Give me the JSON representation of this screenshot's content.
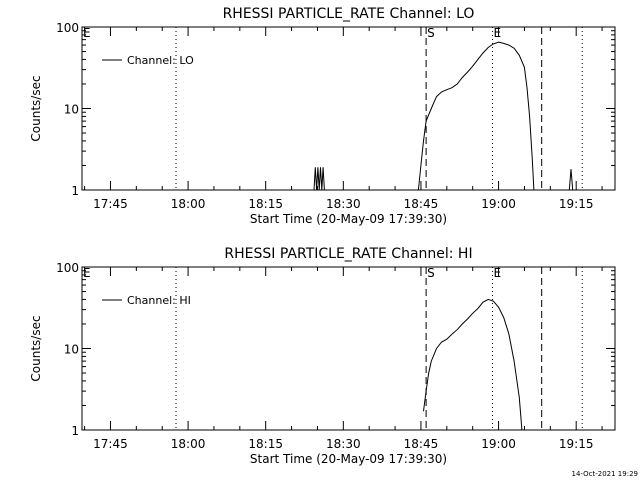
{
  "footer": {
    "timestamp": "14-Oct-2021 19:29"
  },
  "chart_data": [
    {
      "type": "line",
      "title": "RHESSI PARTICLE_RATE Channel: LO",
      "xlabel": "Start Time (20-May-09 17:39:30)",
      "ylabel": "Counts/sec",
      "yscale": "log",
      "ylim": [
        1,
        100
      ],
      "xlim_minutes_after_17_39_30": [
        0,
        103
      ],
      "y_ticks": [
        "1",
        "10",
        "100"
      ],
      "x_ticks": [
        "17:45",
        "18:00",
        "18:15",
        "18:30",
        "18:45",
        "19:00",
        "19:15"
      ],
      "legend": {
        "label": "Channel: LO",
        "position": "top-left"
      },
      "markers": [
        {
          "label": "E",
          "time": "17:39:30",
          "style": "none"
        },
        {
          "label": "",
          "time": "17:57:40",
          "style": "dotted"
        },
        {
          "label": "S",
          "time": "18:46:00",
          "style": "dashed"
        },
        {
          "label": "E",
          "time": "18:58:50",
          "style": "dotted"
        },
        {
          "label": "",
          "time": "19:08:20",
          "style": "dashed"
        },
        {
          "label": "",
          "time": "19:16:10",
          "style": "dotted"
        }
      ],
      "series": [
        {
          "name": "Channel: LO",
          "segments": [
            [
              [
                "18:24:20",
                1
              ],
              [
                "18:24:35",
                1.9
              ],
              [
                "18:24:50",
                1
              ],
              [
                "18:25:05",
                1.9
              ],
              [
                "18:25:20",
                1
              ],
              [
                "18:25:35",
                1.9
              ],
              [
                "18:25:50",
                1
              ],
              [
                "18:26:05",
                1.9
              ],
              [
                "18:26:20",
                1
              ]
            ],
            [
              [
                "18:44:30",
                1
              ],
              [
                "18:45:00",
                2
              ],
              [
                "18:45:30",
                4
              ],
              [
                "18:46:00",
                7
              ],
              [
                "18:47:00",
                10
              ],
              [
                "18:48:00",
                14
              ],
              [
                "18:49:00",
                16
              ],
              [
                "18:50:00",
                17
              ],
              [
                "18:51:00",
                18
              ],
              [
                "18:52:00",
                20
              ],
              [
                "18:53:00",
                24
              ],
              [
                "18:54:00",
                28
              ],
              [
                "18:55:00",
                33
              ],
              [
                "18:56:00",
                40
              ],
              [
                "18:57:00",
                48
              ],
              [
                "18:58:00",
                56
              ],
              [
                "18:59:00",
                62
              ],
              [
                "19:00:00",
                65
              ],
              [
                "19:01:00",
                63
              ],
              [
                "19:02:00",
                60
              ],
              [
                "19:03:00",
                55
              ],
              [
                "19:04:00",
                45
              ],
              [
                "19:05:00",
                32
              ],
              [
                "19:05:30",
                18
              ],
              [
                "19:06:00",
                8
              ],
              [
                "19:06:30",
                2.5
              ],
              [
                "19:06:50",
                1
              ]
            ],
            [
              [
                "19:13:40",
                1
              ],
              [
                "19:14:00",
                1.8
              ],
              [
                "19:14:20",
                1
              ]
            ]
          ]
        }
      ]
    },
    {
      "type": "line",
      "title": "RHESSI PARTICLE_RATE Channel: HI",
      "xlabel": "Start Time (20-May-09 17:39:30)",
      "ylabel": "Counts/sec",
      "yscale": "log",
      "ylim": [
        1,
        100
      ],
      "xlim_minutes_after_17_39_30": [
        0,
        103
      ],
      "y_ticks": [
        "1",
        "10",
        "100"
      ],
      "x_ticks": [
        "17:45",
        "18:00",
        "18:15",
        "18:30",
        "18:45",
        "19:00",
        "19:15"
      ],
      "legend": {
        "label": "Channel: HI",
        "position": "top-left"
      },
      "markers": [
        {
          "label": "E",
          "time": "17:39:30",
          "style": "none"
        },
        {
          "label": "",
          "time": "17:57:40",
          "style": "dotted"
        },
        {
          "label": "S",
          "time": "18:46:00",
          "style": "dashed"
        },
        {
          "label": "E",
          "time": "18:58:50",
          "style": "dotted"
        },
        {
          "label": "",
          "time": "19:08:20",
          "style": "dashed"
        },
        {
          "label": "",
          "time": "19:16:10",
          "style": "dotted"
        }
      ],
      "series": [
        {
          "name": "Channel: HI",
          "segments": [
            [
              [
                "18:45:30",
                1.7
              ],
              [
                "18:46:00",
                3
              ],
              [
                "18:46:30",
                5
              ],
              [
                "18:47:00",
                7
              ],
              [
                "18:48:00",
                10
              ],
              [
                "18:49:00",
                12
              ],
              [
                "18:50:00",
                13
              ],
              [
                "18:51:00",
                15
              ],
              [
                "18:52:00",
                17
              ],
              [
                "18:53:00",
                20
              ],
              [
                "18:54:00",
                23
              ],
              [
                "18:55:00",
                27
              ],
              [
                "18:56:00",
                31
              ],
              [
                "18:57:00",
                37
              ],
              [
                "18:58:00",
                40
              ],
              [
                "18:59:00",
                38
              ],
              [
                "19:00:00",
                32
              ],
              [
                "19:01:00",
                24
              ],
              [
                "19:02:00",
                15
              ],
              [
                "19:03:00",
                7
              ],
              [
                "19:04:00",
                2.5
              ],
              [
                "19:04:30",
                1
              ]
            ]
          ]
        }
      ]
    }
  ]
}
